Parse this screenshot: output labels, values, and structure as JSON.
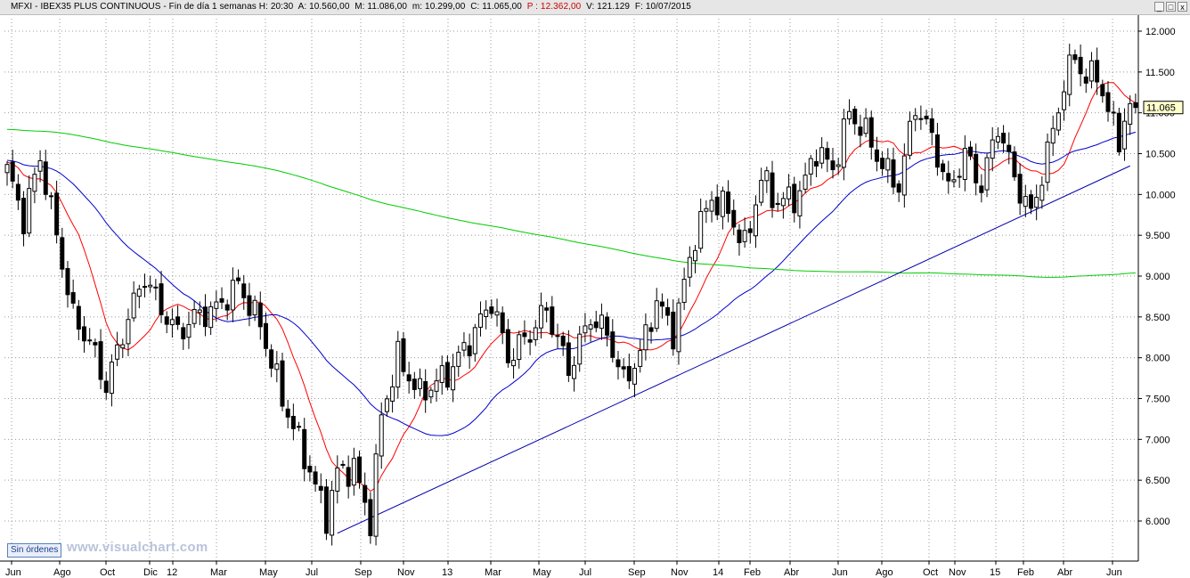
{
  "header": {
    "symbol": "MFXI - IBEX35 PLUS CONTINUOUS - Fin de día 1 semanas",
    "h": "H: 20:30",
    "a": "A: 10.560,00",
    "m": "M: 11.086,00",
    "mn": "m: 10.299,00",
    "c": "C: 11.065,00",
    "p": "P : 12.362,00",
    "v": "V: 121.129",
    "f": "F: 10/07/2015"
  },
  "window_buttons": [
    "_",
    "□",
    "x"
  ],
  "status_button": "Sin órdenes",
  "watermark": "www.visualchart.com",
  "chart_data": {
    "type": "candlestick",
    "ylim": [
      5500,
      12200
    ],
    "y_ticks": [
      6000,
      6500,
      7000,
      7500,
      8000,
      8500,
      9000,
      9500,
      10000,
      10500,
      11000,
      11500,
      12000
    ],
    "y_tick_labels": [
      "6.000",
      "6.500",
      "7.000",
      "7.500",
      "8.000",
      "8.500",
      "9.000",
      "9.500",
      "10.000",
      "10.500",
      "11.000",
      "11.500",
      "12.000"
    ],
    "x_labels": [
      "Jun",
      "Ago",
      "Oct",
      "Dic",
      "12",
      "Mar",
      "May",
      "Jul",
      "Sep",
      "Nov",
      "13",
      "Mar",
      "May",
      "Jul",
      "Sep",
      "Nov",
      "14",
      "Feb",
      "Abr",
      "Jun",
      "Ago",
      "Oct",
      "Nov",
      "15",
      "Feb",
      "Abr",
      "Jun"
    ],
    "last_price_label": "11.065",
    "last_price": 11065,
    "anchors": [
      [
        0,
        10300
      ],
      [
        3,
        9700
      ],
      [
        6,
        10450
      ],
      [
        9,
        9500
      ],
      [
        12,
        8500
      ],
      [
        15,
        8200
      ],
      [
        18,
        7650
      ],
      [
        22,
        8500
      ],
      [
        25,
        9000
      ],
      [
        28,
        8600
      ],
      [
        31,
        8300
      ],
      [
        34,
        8500
      ],
      [
        38,
        8600
      ],
      [
        42,
        8900
      ],
      [
        46,
        8400
      ],
      [
        50,
        7500
      ],
      [
        54,
        6800
      ],
      [
        58,
        6050
      ],
      [
        60,
        6600
      ],
      [
        63,
        6650
      ],
      [
        66,
        6000
      ],
      [
        68,
        7300
      ],
      [
        71,
        8000
      ],
      [
        75,
        7550
      ],
      [
        80,
        7800
      ],
      [
        84,
        8200
      ],
      [
        88,
        8700
      ],
      [
        91,
        8000
      ],
      [
        95,
        8300
      ],
      [
        98,
        8600
      ],
      [
        102,
        7850
      ],
      [
        106,
        8500
      ],
      [
        109,
        8300
      ],
      [
        112,
        7700
      ],
      [
        115,
        8050
      ],
      [
        118,
        8700
      ],
      [
        121,
        8300
      ],
      [
        125,
        9500
      ],
      [
        128,
        9950
      ],
      [
        131,
        9800
      ],
      [
        134,
        9350
      ],
      [
        137,
        10200
      ],
      [
        140,
        9900
      ],
      [
        144,
        10000
      ],
      [
        147,
        10550
      ],
      [
        150,
        10300
      ],
      [
        153,
        11000
      ],
      [
        156,
        10750
      ],
      [
        159,
        10350
      ],
      [
        162,
        10100
      ],
      [
        165,
        11100
      ],
      [
        168,
        10700
      ],
      [
        171,
        10050
      ],
      [
        174,
        10500
      ],
      [
        177,
        10100
      ],
      [
        180,
        10850
      ],
      [
        183,
        10200
      ],
      [
        186,
        9750
      ],
      [
        189,
        10500
      ],
      [
        192,
        11350
      ],
      [
        194,
        11700
      ],
      [
        196,
        11400
      ],
      [
        198,
        11500
      ],
      [
        200,
        11000
      ],
      [
        202,
        10700
      ],
      [
        204,
        11065
      ]
    ],
    "trendline": [
      [
        60,
        5850
      ],
      [
        204,
        10350
      ]
    ],
    "series": [
      {
        "color": "#ff0000",
        "period": 10,
        "start": 10400
      },
      {
        "color": "#0000cc",
        "period": 30,
        "start": 10420
      },
      {
        "color": "#00cc00",
        "period": 200,
        "start": 10800
      }
    ],
    "grid": true
  }
}
